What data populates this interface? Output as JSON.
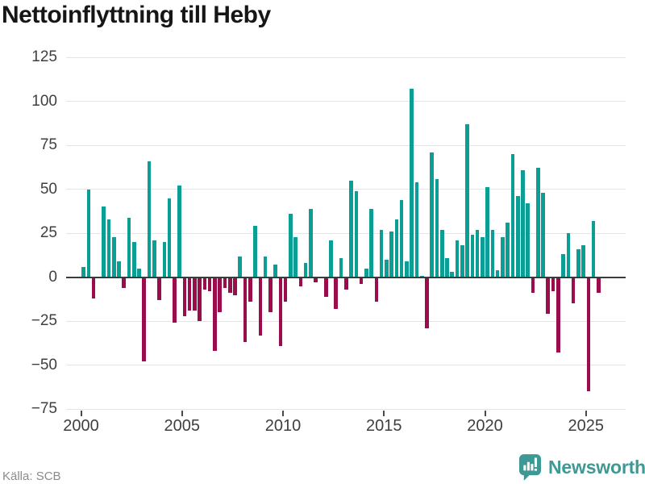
{
  "title": "Nettoinflyttning till Heby",
  "source": "Källa: SCB",
  "brand": {
    "name": "Newsworthy"
  },
  "chart_data": {
    "type": "bar",
    "frequency": "quarterly",
    "title": "Nettoinflyttning till Heby",
    "xlabel": "",
    "ylabel": "",
    "ylim": [
      -75,
      125
    ],
    "grid": true,
    "legend": "none",
    "colors": {
      "positive": "#0b9e95",
      "negative": "#9b0c4d"
    },
    "yticks": [
      {
        "label": "125",
        "value": 125
      },
      {
        "label": "100",
        "value": 100
      },
      {
        "label": "75",
        "value": 75
      },
      {
        "label": "50",
        "value": 50
      },
      {
        "label": "25",
        "value": 25
      },
      {
        "label": "0",
        "value": 0
      },
      {
        "label": "−25",
        "value": -25
      },
      {
        "label": "−50",
        "value": -50
      },
      {
        "label": "−75",
        "value": -75
      }
    ],
    "xticks": [
      {
        "label": "2000",
        "value": 2000
      },
      {
        "label": "2005",
        "value": 2005
      },
      {
        "label": "2010",
        "value": 2010
      },
      {
        "label": "2015",
        "value": 2015
      },
      {
        "label": "2020",
        "value": 2020
      },
      {
        "label": "2025",
        "value": 2025
      }
    ],
    "years": [
      {
        "year": 2000,
        "values": [
          6,
          50,
          -12,
          0
        ]
      },
      {
        "year": 2001,
        "values": [
          40,
          33,
          23,
          9
        ]
      },
      {
        "year": 2002,
        "values": [
          -6,
          34,
          20,
          5
        ]
      },
      {
        "year": 2003,
        "values": [
          -48,
          66,
          21,
          -13
        ]
      },
      {
        "year": 2004,
        "values": [
          20,
          45,
          -26,
          52
        ]
      },
      {
        "year": 2005,
        "values": [
          -22,
          -19,
          -19,
          -25
        ]
      },
      {
        "year": 2006,
        "values": [
          -7,
          -8,
          -42,
          -20
        ]
      },
      {
        "year": 2007,
        "values": [
          -6,
          -9,
          -10,
          12
        ]
      },
      {
        "year": 2008,
        "values": [
          -37,
          -14,
          29,
          -33
        ]
      },
      {
        "year": 2009,
        "values": [
          12,
          -20,
          7,
          -39
        ]
      },
      {
        "year": 2010,
        "values": [
          -14,
          36,
          23,
          -5
        ]
      },
      {
        "year": 2011,
        "values": [
          8,
          39,
          -3,
          0
        ]
      },
      {
        "year": 2012,
        "values": [
          -11,
          21,
          -18,
          11
        ]
      },
      {
        "year": 2013,
        "values": [
          -7,
          55,
          49,
          -4
        ]
      },
      {
        "year": 2014,
        "values": [
          5,
          39,
          -14,
          27
        ]
      },
      {
        "year": 2015,
        "values": [
          10,
          26,
          33,
          44
        ]
      },
      {
        "year": 2016,
        "values": [
          9,
          107,
          54,
          1
        ]
      },
      {
        "year": 2017,
        "values": [
          -29,
          71,
          56,
          27
        ]
      },
      {
        "year": 2018,
        "values": [
          11,
          3,
          21,
          18
        ]
      },
      {
        "year": 2019,
        "values": [
          87,
          24,
          27,
          23
        ]
      },
      {
        "year": 2020,
        "values": [
          51,
          27,
          4,
          23
        ]
      },
      {
        "year": 2021,
        "values": [
          31,
          70,
          46,
          61
        ]
      },
      {
        "year": 2022,
        "values": [
          42,
          -9,
          62,
          48
        ]
      },
      {
        "year": 2023,
        "values": [
          -21,
          -8,
          -43,
          13
        ]
      },
      {
        "year": 2024,
        "values": [
          25,
          -15,
          16,
          18
        ]
      },
      {
        "year": 2025,
        "values": [
          -65,
          32,
          -9
        ]
      }
    ]
  }
}
